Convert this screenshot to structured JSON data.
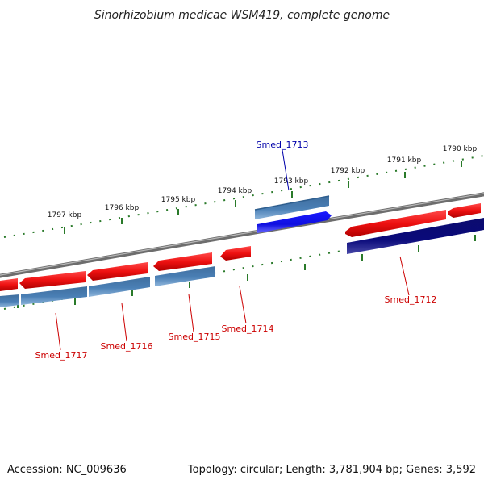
{
  "title": "Sinorhizobium medicae WSM419, complete genome",
  "footer": {
    "accession": "Accession: NC_009636",
    "summary": "Topology: circular; Length: 3,781,904 bp; Genes: 3,592"
  },
  "scale_labels": [
    "1797 kbp",
    "1796 kbp",
    "1795 kbp",
    "1794 kbp",
    "1793 kbp",
    "1792 kbp",
    "1791 kbp",
    "1790 kbp"
  ],
  "genes": [
    {
      "label": "Smed_1713",
      "color": "#0000aa"
    },
    {
      "label": "Smed_1712",
      "color": "#cc0000"
    },
    {
      "label": "Smed_1714",
      "color": "#cc0000"
    },
    {
      "label": "Smed_1715",
      "color": "#cc0000"
    },
    {
      "label": "Smed_1716",
      "color": "#cc0000"
    },
    {
      "label": "Smed_1717",
      "color": "#cc0000"
    }
  ],
  "colors": {
    "gene_red": "#ee1111",
    "orf_steelblue": "#4a7fb5",
    "orf_blue": "#1010ee",
    "orf_navy": "#0a0a7a",
    "backbone": "#808080",
    "scale_ticks": "#2a7a2a"
  }
}
